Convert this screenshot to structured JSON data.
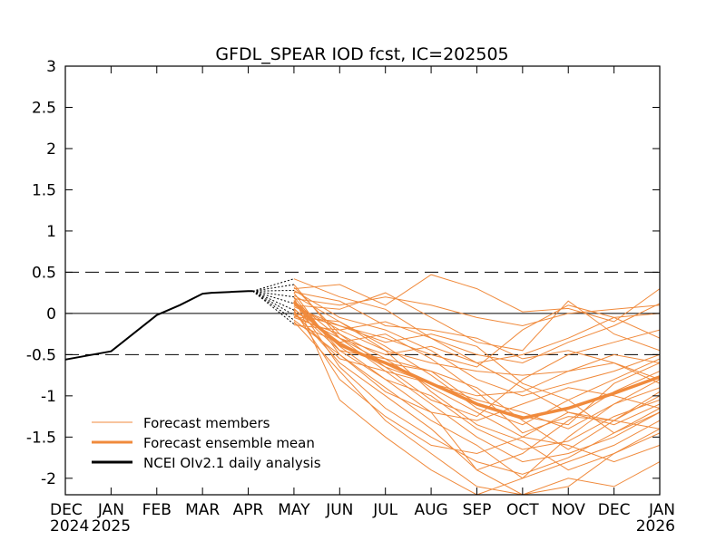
{
  "chart_data": {
    "type": "line",
    "title": "GFDL_SPEAR IOD fcst, IC=202505",
    "xlabel": "",
    "ylabel": "",
    "ylim": [
      -2.2,
      3
    ],
    "grid": false,
    "legend_position": "bottom-left",
    "y_ticks": [
      3,
      2.5,
      2,
      1.5,
      1,
      0.5,
      0,
      -0.5,
      -1,
      -1.5,
      -2
    ],
    "y_tick_labels": [
      "3",
      "2.5",
      "2",
      "1.5",
      "1",
      "0.5",
      "0",
      "-0.5",
      "-1",
      "-1.5",
      "-2"
    ],
    "x_ticks": [
      {
        "label": "DEC",
        "year": "2024"
      },
      {
        "label": "JAN",
        "year": "2025"
      },
      {
        "label": "FEB",
        "year": ""
      },
      {
        "label": "MAR",
        "year": ""
      },
      {
        "label": "APR",
        "year": ""
      },
      {
        "label": "MAY",
        "year": ""
      },
      {
        "label": "JUN",
        "year": ""
      },
      {
        "label": "JUL",
        "year": ""
      },
      {
        "label": "AUG",
        "year": ""
      },
      {
        "label": "SEP",
        "year": ""
      },
      {
        "label": "OCT",
        "year": ""
      },
      {
        "label": "NOV",
        "year": ""
      },
      {
        "label": "DEC",
        "year": ""
      },
      {
        "label": "JAN",
        "year": "2026"
      }
    ],
    "reference_lines": [
      {
        "y": 0.5,
        "style": "dashed"
      },
      {
        "y": 0,
        "style": "solid"
      },
      {
        "y": -0.5,
        "style": "dashed"
      }
    ],
    "legend": [
      {
        "label": "Forecast members",
        "color": "#f08a3c",
        "weight": "thin"
      },
      {
        "label": "Forecast ensemble mean",
        "color": "#f08a3c",
        "weight": "thick"
      },
      {
        "label": "NCEI OIv2.1 daily analysis",
        "color": "#000000",
        "weight": "thick"
      }
    ],
    "series": [
      {
        "name": "NCEI OIv2.1 daily analysis",
        "color": "#000000",
        "x": [
          0,
          1,
          2,
          2.5,
          3,
          3.2,
          3.6,
          4,
          4.1
        ],
        "values": [
          -0.56,
          -0.46,
          -0.02,
          0.1,
          0.24,
          0.25,
          0.26,
          0.27,
          0.27
        ]
      },
      {
        "name": "Forecast ensemble mean",
        "color": "#f08a3c",
        "x": [
          5,
          5.5,
          6,
          6.5,
          7,
          8,
          9,
          10,
          11,
          12,
          13
        ],
        "values": [
          0.14,
          -0.15,
          -0.38,
          -0.5,
          -0.6,
          -0.85,
          -1.1,
          -1.27,
          -1.15,
          -0.97,
          -0.77
        ]
      }
    ],
    "spread_from_x": 4.1,
    "spread_to_x": 5,
    "spread_values": [
      0.42,
      0.35,
      0.28,
      0.2,
      0.12,
      0.04,
      -0.02,
      -0.08,
      -0.13
    ],
    "member_x": [
      5,
      6,
      7,
      8,
      9,
      10,
      11,
      12,
      13
    ],
    "members": [
      [
        0.42,
        0.2,
        0.05,
        -0.3,
        -0.6,
        -0.9,
        -1.2,
        -1.3,
        -1.4
      ],
      [
        0.35,
        -0.3,
        -0.7,
        -1.1,
        -1.5,
        -1.8,
        -1.7,
        -1.5,
        -1.2
      ],
      [
        0.3,
        0.35,
        0.1,
        0.47,
        0.3,
        0.02,
        0.06,
        -0.1,
        0.3
      ],
      [
        0.28,
        -0.05,
        -0.2,
        -0.45,
        -0.8,
        -1.0,
        -0.85,
        -0.7,
        -0.5
      ],
      [
        0.25,
        -0.5,
        -0.9,
        -1.3,
        -1.6,
        -2.0,
        -1.8,
        -1.6,
        -1.3
      ],
      [
        0.2,
        -1.05,
        -1.5,
        -1.9,
        -2.2,
        -2.0,
        -1.5,
        -1.1,
        -0.9
      ],
      [
        0.18,
        0.1,
        0.2,
        0.1,
        -0.05,
        -0.15,
        0.0,
        0.05,
        0.1
      ],
      [
        0.15,
        -0.3,
        -0.6,
        -0.7,
        -0.9,
        -1.3,
        -1.65,
        -1.3,
        -0.95
      ],
      [
        0.12,
        -0.4,
        -0.8,
        -1.2,
        -1.9,
        -2.2,
        -2.1,
        -1.7,
        -1.4
      ],
      [
        0.1,
        -0.2,
        -0.45,
        -0.6,
        -0.7,
        -0.75,
        -0.7,
        -0.6,
        -0.85
      ],
      [
        0.08,
        -0.15,
        -0.3,
        -0.5,
        -0.65,
        -0.2,
        0.1,
        -0.05,
        -0.3
      ],
      [
        0.05,
        -0.35,
        -0.65,
        -0.85,
        -1.0,
        -0.95,
        -0.7,
        -0.5,
        -0.6
      ],
      [
        0.02,
        -0.6,
        -1.0,
        -1.4,
        -1.9,
        -1.7,
        -1.3,
        -0.95,
        -0.7
      ],
      [
        0.0,
        -0.55,
        -0.7,
        -0.85,
        -1.05,
        -1.2,
        -1.4,
        -1.1,
        -0.8
      ],
      [
        -0.02,
        -0.3,
        -0.5,
        -0.4,
        -0.6,
        -0.5,
        -0.3,
        -0.05,
        0.0
      ],
      [
        -0.05,
        -0.25,
        -0.55,
        -0.9,
        -1.2,
        -1.5,
        -1.6,
        -1.8,
        -1.6
      ],
      [
        -0.08,
        -0.5,
        -0.95,
        -1.2,
        -1.3,
        -1.1,
        -0.9,
        -1.0,
        -1.15
      ],
      [
        -0.1,
        -0.7,
        -1.3,
        -1.7,
        -2.1,
        -2.2,
        -2.0,
        -2.1,
        -1.8
      ],
      [
        -0.12,
        -0.35,
        -0.25,
        -0.55,
        -0.95,
        -1.45,
        -1.25,
        -1.3,
        -1.0
      ],
      [
        -0.14,
        -0.2,
        -0.1,
        -0.3,
        -0.5,
        -0.6,
        -0.35,
        -0.15,
        0.12
      ],
      [
        0.06,
        -0.45,
        -0.8,
        -1.0,
        -1.4,
        -1.65,
        -1.55,
        -1.25,
        -1.05
      ],
      [
        0.22,
        -0.1,
        -0.4,
        -0.75,
        -1.15,
        -1.35,
        -1.05,
        -0.8,
        -0.55
      ],
      [
        0.32,
        -0.25,
        -0.65,
        -1.05,
        -1.25,
        -0.8,
        -0.5,
        -0.35,
        -0.2
      ],
      [
        0.16,
        -0.65,
        -1.15,
        -1.5,
        -1.8,
        -1.95,
        -1.75,
        -1.45,
        -1.2
      ],
      [
        0.1,
        0.05,
        0.25,
        -0.05,
        -0.35,
        -0.45,
        0.15,
        -0.25,
        -0.45
      ],
      [
        0.0,
        -0.15,
        -0.35,
        -0.25,
        -0.4,
        -0.85,
        -1.05,
        -1.45,
        -1.15
      ],
      [
        0.2,
        -0.45,
        -0.55,
        -0.7,
        -1.1,
        -1.25,
        -1.35,
        -0.85,
        -0.6
      ],
      [
        0.04,
        -0.8,
        -1.25,
        -1.6,
        -1.7,
        -1.5,
        -1.2,
        -1.35,
        -1.1
      ],
      [
        0.26,
        0.15,
        -0.15,
        -0.2,
        -0.3,
        -0.55,
        -0.45,
        -0.6,
        -0.8
      ],
      [
        -0.04,
        -0.1,
        -0.45,
        -0.95,
        -1.35,
        -1.55,
        -1.9,
        -1.7,
        -1.45
      ]
    ]
  }
}
